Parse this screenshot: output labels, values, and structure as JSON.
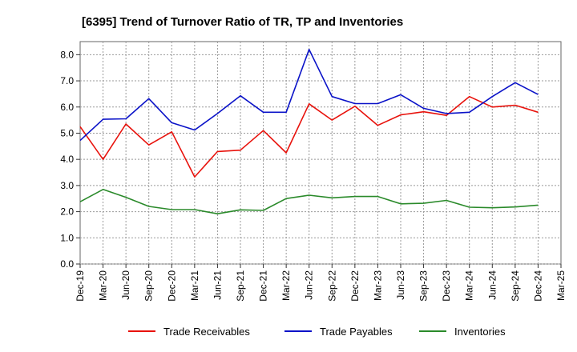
{
  "chart_data": {
    "type": "line",
    "title": "[6395]  Trend of Turnover Ratio of TR, TP and Inventories",
    "xlabel": "",
    "ylabel": "",
    "ylim": [
      0,
      8.5
    ],
    "y_ticks": [
      "0.0",
      "1.0",
      "2.0",
      "3.0",
      "4.0",
      "5.0",
      "6.0",
      "7.0",
      "8.0"
    ],
    "grid": true,
    "legend_position": "bottom",
    "x": [
      "Dec-19",
      "Mar-20",
      "Jun-20",
      "Sep-20",
      "Dec-20",
      "Mar-21",
      "Jun-21",
      "Sep-21",
      "Dec-21",
      "Mar-22",
      "Jun-22",
      "Sep-22",
      "Dec-22",
      "Mar-23",
      "Jun-23",
      "Sep-23",
      "Dec-23",
      "Mar-24",
      "Jun-24",
      "Sep-24",
      "Dec-24",
      "Mar-25"
    ],
    "series": [
      {
        "name": "Trade Receivables",
        "color": "#e8120c",
        "values": [
          5.25,
          4.0,
          5.35,
          4.55,
          5.05,
          3.33,
          4.3,
          4.35,
          5.1,
          4.25,
          6.12,
          5.5,
          6.03,
          5.3,
          5.7,
          5.82,
          5.68,
          6.4,
          6.0,
          6.07,
          5.8,
          null
        ]
      },
      {
        "name": "Trade Payables",
        "color": "#0a12c8",
        "values": [
          4.72,
          5.53,
          5.55,
          6.32,
          5.4,
          5.12,
          5.75,
          6.43,
          5.8,
          5.8,
          8.2,
          6.4,
          6.13,
          6.13,
          6.47,
          5.95,
          5.75,
          5.8,
          6.4,
          6.93,
          6.48,
          null
        ]
      },
      {
        "name": "Inventories",
        "color": "#2a8a2a",
        "values": [
          2.38,
          2.85,
          2.55,
          2.2,
          2.08,
          2.08,
          1.92,
          2.07,
          2.05,
          2.5,
          2.63,
          2.53,
          2.58,
          2.58,
          2.3,
          2.32,
          2.43,
          2.17,
          2.15,
          2.18,
          2.25,
          null
        ]
      }
    ]
  }
}
